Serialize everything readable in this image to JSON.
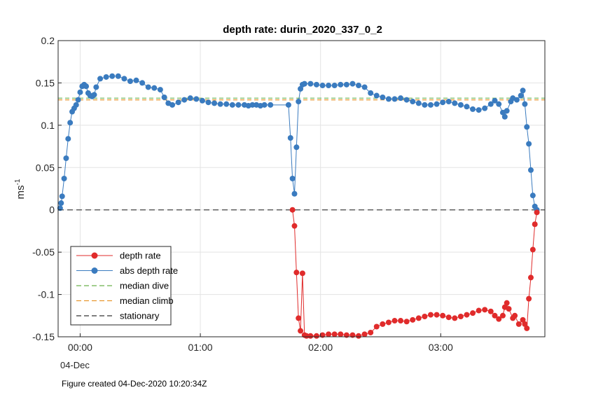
{
  "chart_data": {
    "type": "line",
    "title": "depth rate: durin_2020_337_0_2",
    "ylabel": "ms",
    "ylabel_superscript": "-1",
    "xlim": [
      "23:49",
      "03:52"
    ],
    "ylim": [
      -0.15,
      0.2
    ],
    "yticks": [
      "0.2",
      "0.15",
      "0.1",
      "0.05",
      "0",
      "-0.05",
      "-0.1",
      "-0.15"
    ],
    "ytick_values": [
      0.2,
      0.15,
      0.1,
      0.05,
      0,
      -0.05,
      -0.1,
      -0.15
    ],
    "xticks": [
      "00:00",
      "01:00",
      "02:00",
      "03:00"
    ],
    "xtick_minutes": [
      0,
      60,
      120,
      180
    ],
    "xlabel_sub": "04-Dec",
    "grid": true,
    "legend_position": "bottom-left",
    "series": [
      {
        "name": "depth rate",
        "color": "#e02b2b",
        "points": [
          [
            110,
            -0.143
          ],
          [
            111,
            -0.075
          ],
          [
            112,
            -0.148
          ],
          [
            113,
            -0.149
          ],
          [
            115,
            -0.149
          ],
          [
            118,
            -0.149
          ],
          [
            121,
            -0.148
          ],
          [
            124,
            -0.147
          ],
          [
            127,
            -0.147
          ],
          [
            130,
            -0.147
          ],
          [
            133,
            -0.148
          ],
          [
            136,
            -0.148
          ],
          [
            139,
            -0.149
          ],
          [
            142,
            -0.147
          ],
          [
            145,
            -0.145
          ],
          [
            148,
            -0.138
          ],
          [
            151,
            -0.135
          ],
          [
            154,
            -0.133
          ],
          [
            157,
            -0.131
          ],
          [
            160,
            -0.131
          ],
          [
            163,
            -0.132
          ],
          [
            166,
            -0.13
          ],
          [
            169,
            -0.128
          ],
          [
            172,
            -0.126
          ],
          [
            175,
            -0.124
          ],
          [
            178,
            -0.124
          ],
          [
            181,
            -0.125
          ],
          [
            184,
            -0.127
          ],
          [
            187,
            -0.128
          ],
          [
            190,
            -0.126
          ],
          [
            193,
            -0.124
          ],
          [
            196,
            -0.122
          ],
          [
            199,
            -0.119
          ],
          [
            202,
            -0.118
          ],
          [
            205,
            -0.12
          ],
          [
            207,
            -0.125
          ],
          [
            209,
            -0.129
          ],
          [
            211,
            -0.125
          ],
          [
            212,
            -0.115
          ],
          [
            213,
            -0.11
          ],
          [
            214,
            -0.117
          ],
          [
            216,
            -0.128
          ],
          [
            217,
            -0.125
          ],
          [
            219,
            -0.135
          ],
          [
            221,
            -0.13
          ],
          [
            222,
            -0.135
          ],
          [
            223,
            -0.14
          ],
          [
            224,
            -0.105
          ],
          [
            225,
            -0.08
          ],
          [
            226,
            -0.047
          ],
          [
            227,
            -0.017
          ],
          [
            228,
            -0.003
          ]
        ],
        "lead_in": [
          [
            106,
            0.0
          ],
          [
            107,
            -0.019
          ],
          [
            108,
            -0.074
          ],
          [
            109,
            -0.128
          ]
        ]
      },
      {
        "name": "abs depth rate",
        "color": "#3a7bbf",
        "points": [
          [
            -10,
            0.002
          ],
          [
            -9.5,
            0.008
          ],
          [
            -9,
            0.016
          ],
          [
            -8,
            0.037
          ],
          [
            -7,
            0.061
          ],
          [
            -6,
            0.084
          ],
          [
            -5,
            0.103
          ],
          [
            -4,
            0.116
          ],
          [
            -3,
            0.12
          ],
          [
            -2,
            0.124
          ],
          [
            -1,
            0.13
          ],
          [
            0,
            0.139
          ],
          [
            1,
            0.146
          ],
          [
            2,
            0.148
          ],
          [
            3,
            0.146
          ],
          [
            4,
            0.138
          ],
          [
            5,
            0.135
          ],
          [
            6,
            0.134
          ],
          [
            7,
            0.136
          ],
          [
            8,
            0.145
          ],
          [
            10,
            0.155
          ],
          [
            13,
            0.157
          ],
          [
            16,
            0.158
          ],
          [
            19,
            0.158
          ],
          [
            22,
            0.155
          ],
          [
            25,
            0.152
          ],
          [
            28,
            0.153
          ],
          [
            31,
            0.15
          ],
          [
            34,
            0.145
          ],
          [
            37,
            0.144
          ],
          [
            40,
            0.142
          ],
          [
            42,
            0.133
          ],
          [
            44,
            0.126
          ],
          [
            46,
            0.124
          ],
          [
            49,
            0.127
          ],
          [
            52,
            0.13
          ],
          [
            55,
            0.132
          ],
          [
            58,
            0.131
          ],
          [
            61,
            0.129
          ],
          [
            64,
            0.127
          ],
          [
            67,
            0.126
          ],
          [
            70,
            0.125
          ],
          [
            73,
            0.125
          ],
          [
            76,
            0.124
          ],
          [
            79,
            0.124
          ],
          [
            82,
            0.124
          ],
          [
            84,
            0.123
          ],
          [
            86,
            0.124
          ],
          [
            88,
            0.124
          ],
          [
            90,
            0.123
          ],
          [
            92,
            0.124
          ],
          [
            95,
            0.124
          ],
          [
            104,
            0.124
          ],
          [
            105,
            0.085
          ],
          [
            106,
            0.037
          ],
          [
            107,
            0.019
          ],
          [
            108,
            0.074
          ],
          [
            109,
            0.128
          ],
          [
            110,
            0.143
          ],
          [
            111,
            0.148
          ],
          [
            112,
            0.149
          ],
          [
            115,
            0.149
          ],
          [
            118,
            0.148
          ],
          [
            121,
            0.147
          ],
          [
            124,
            0.147
          ],
          [
            127,
            0.147
          ],
          [
            130,
            0.148
          ],
          [
            133,
            0.148
          ],
          [
            136,
            0.149
          ],
          [
            139,
            0.147
          ],
          [
            142,
            0.145
          ],
          [
            145,
            0.138
          ],
          [
            148,
            0.135
          ],
          [
            151,
            0.133
          ],
          [
            154,
            0.131
          ],
          [
            157,
            0.131
          ],
          [
            160,
            0.132
          ],
          [
            163,
            0.13
          ],
          [
            166,
            0.128
          ],
          [
            169,
            0.126
          ],
          [
            172,
            0.124
          ],
          [
            175,
            0.124
          ],
          [
            178,
            0.125
          ],
          [
            181,
            0.127
          ],
          [
            184,
            0.128
          ],
          [
            187,
            0.126
          ],
          [
            190,
            0.124
          ],
          [
            193,
            0.122
          ],
          [
            196,
            0.119
          ],
          [
            199,
            0.118
          ],
          [
            202,
            0.12
          ],
          [
            205,
            0.125
          ],
          [
            207,
            0.129
          ],
          [
            209,
            0.125
          ],
          [
            211,
            0.115
          ],
          [
            212,
            0.11
          ],
          [
            213,
            0.117
          ],
          [
            215,
            0.128
          ],
          [
            216,
            0.132
          ],
          [
            218,
            0.13
          ],
          [
            220,
            0.135
          ],
          [
            221,
            0.141
          ],
          [
            222,
            0.125
          ],
          [
            223,
            0.098
          ],
          [
            224,
            0.078
          ],
          [
            225,
            0.047
          ],
          [
            226,
            0.017
          ],
          [
            227,
            0.004
          ],
          [
            228,
            0.0
          ]
        ]
      },
      {
        "name": "median dive",
        "color": "#6ab04c",
        "value": 0.132
      },
      {
        "name": "median climb",
        "color": "#e8962e",
        "value": 0.13
      },
      {
        "name": "stationary",
        "color": "#000000",
        "value": 0
      }
    ]
  },
  "footer": {
    "text": "Figure created 04-Dec-2020 10:20:34Z"
  }
}
